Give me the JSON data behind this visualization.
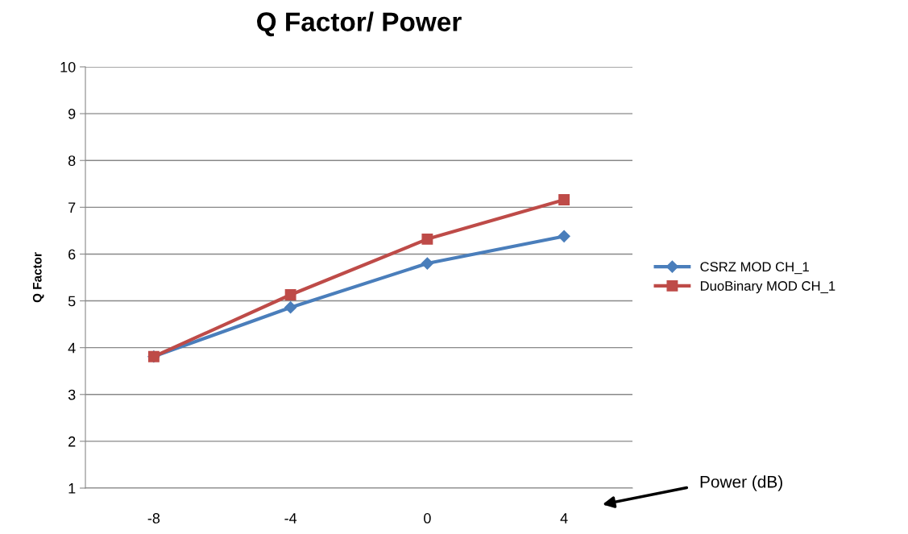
{
  "chart_data": {
    "type": "line",
    "title": "Q Factor/ Power",
    "xlabel": "Power (dB)",
    "ylabel": "Q Factor",
    "categories": [
      "-8",
      "-4",
      "0",
      "4"
    ],
    "series": [
      {
        "name": "CSRZ MOD CH_1",
        "color": "#4a7ebb",
        "marker": "diamond",
        "values": [
          3.81,
          4.86,
          5.8,
          6.38
        ]
      },
      {
        "name": "DuoBinary MOD CH_1",
        "color": "#be4b48",
        "marker": "square",
        "values": [
          3.81,
          5.13,
          6.32,
          7.16
        ]
      }
    ],
    "ylim": [
      1,
      10
    ],
    "yticks": [
      1,
      2,
      3,
      4,
      5,
      6,
      7,
      8,
      9,
      10
    ],
    "grid": "y",
    "legend": "right",
    "line_style": "solid"
  }
}
